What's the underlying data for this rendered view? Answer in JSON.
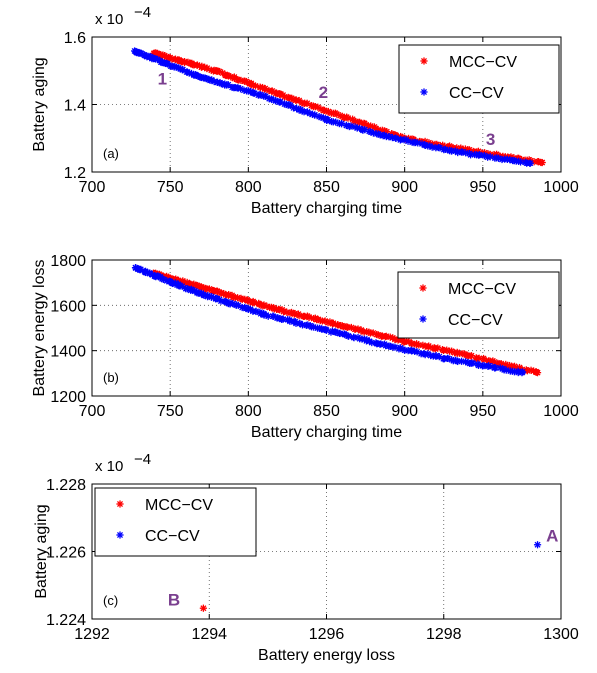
{
  "chart_data": [
    {
      "type": "scatter",
      "panel_label": "(a)",
      "xlabel": "Battery charging time",
      "ylabel": "Battery aging",
      "exponent_label": "x 10",
      "exponent_power": "−4",
      "xlim": [
        700,
        1000
      ],
      "ylim": [
        1.2,
        1.6
      ],
      "xticks": [
        "700",
        "750",
        "800",
        "850",
        "900",
        "950",
        "1000"
      ],
      "yticks": [
        "1.2",
        "1.4",
        "1.6"
      ],
      "grid": true,
      "legend_position": "top-right",
      "series": [
        {
          "name": "MCC−CV",
          "color": "#ff0000",
          "x": [
            740,
            780,
            820,
            860,
            900,
            940,
            988
          ],
          "y": [
            1.552,
            1.498,
            1.43,
            1.365,
            1.3,
            1.265,
            1.228
          ]
        },
        {
          "name": "CC−CV",
          "color": "#0000ff",
          "x": [
            728,
            770,
            810,
            850,
            890,
            930,
            980
          ],
          "y": [
            1.557,
            1.48,
            1.425,
            1.355,
            1.305,
            1.262,
            1.226
          ]
        }
      ],
      "annotations": [
        {
          "text": "1",
          "x": 745,
          "y": 1.46
        },
        {
          "text": "2",
          "x": 848,
          "y": 1.42
        },
        {
          "text": "3",
          "x": 955,
          "y": 1.28
        }
      ]
    },
    {
      "type": "scatter",
      "panel_label": "(b)",
      "xlabel": "Battery charging time",
      "ylabel": "Battery energy loss",
      "xlim": [
        700,
        1000
      ],
      "ylim": [
        1200,
        1800
      ],
      "xticks": [
        "700",
        "750",
        "800",
        "850",
        "900",
        "950",
        "1000"
      ],
      "yticks": [
        "1200",
        "1400",
        "1600",
        "1800"
      ],
      "grid": true,
      "legend_position": "top-right",
      "series": [
        {
          "name": "MCC−CV",
          "color": "#ff0000",
          "x": [
            740,
            780,
            820,
            860,
            900,
            940,
            985
          ],
          "y": [
            1740,
            1660,
            1580,
            1510,
            1440,
            1380,
            1303
          ]
        },
        {
          "name": "CC−CV",
          "color": "#0000ff",
          "x": [
            728,
            770,
            810,
            850,
            890,
            930,
            975
          ],
          "y": [
            1765,
            1650,
            1560,
            1490,
            1420,
            1360,
            1303
          ]
        }
      ]
    },
    {
      "type": "scatter",
      "panel_label": "(c)",
      "xlabel": "Battery energy loss",
      "ylabel": "Battery aging",
      "exponent_label": "x 10",
      "exponent_power": "−4",
      "xlim": [
        1292,
        1300
      ],
      "ylim": [
        1.224,
        1.228
      ],
      "xticks": [
        "1292",
        "1294",
        "1296",
        "1298",
        "1300"
      ],
      "yticks": [
        "1.224",
        "1.226",
        "1.228"
      ],
      "grid": true,
      "legend_position": "top-left",
      "series": [
        {
          "name": "MCC−CV",
          "color": "#ff0000",
          "x": [
            1293.9
          ],
          "y": [
            1.22432
          ]
        },
        {
          "name": "CC−CV",
          "color": "#0000ff",
          "x": [
            1299.6
          ],
          "y": [
            1.2262
          ]
        }
      ],
      "annotations": [
        {
          "text": "A",
          "x": 1299.85,
          "y": 1.2263
        },
        {
          "text": "B",
          "x": 1293.4,
          "y": 1.2244
        }
      ]
    }
  ]
}
